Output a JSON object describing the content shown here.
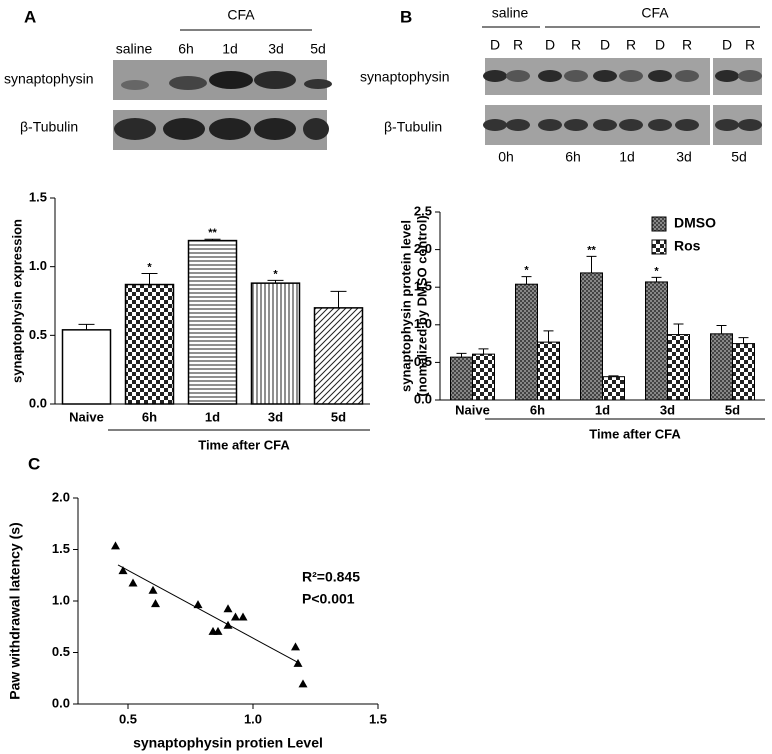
{
  "blot_a": {
    "panel": "A",
    "saline": "saline",
    "cfa": "CFA",
    "times": [
      "6h",
      "1d",
      "3d",
      "5d"
    ],
    "rows": [
      "synaptophysin",
      "β-Tubulin"
    ]
  },
  "blot_b": {
    "panel": "B",
    "saline": "saline",
    "cfa": "CFA",
    "lanes": [
      "D",
      "R",
      "D",
      "R",
      "D",
      "R",
      "D",
      "R",
      "D",
      "R"
    ],
    "times": [
      "0h",
      "6h",
      "1d",
      "3d",
      "5d"
    ],
    "rows": [
      "synaptophysin",
      "β-Tubulin"
    ]
  },
  "panel_c": "C",
  "chart_data": [
    {
      "type": "bar",
      "ylabel": "synaptophysin expression",
      "xlabel": "Time after CFA",
      "categories": [
        "Naive",
        "6h",
        "1d",
        "3d",
        "5d"
      ],
      "values": [
        0.54,
        0.87,
        1.19,
        0.88,
        0.7
      ],
      "errors": [
        0.04,
        0.08,
        0.01,
        0.02,
        0.12
      ],
      "significance": [
        null,
        "*",
        "**",
        "*",
        null
      ],
      "patterns": [
        "none",
        "checker",
        "horizontal",
        "vertical",
        "diagonal"
      ],
      "color": "#000000",
      "ylim": [
        0,
        1.5
      ],
      "yticks": [
        {
          "value": 0,
          "label": "0.0"
        },
        0.5,
        {
          "value": 1,
          "label": "1.0"
        },
        1.5
      ]
    },
    {
      "type": "grouped_bar",
      "ylabel": [
        "synaptophysin protein level",
        "(nomalized by DMSO control)"
      ],
      "xlabel": "Time after CFA",
      "categories": [
        "Naive",
        "6h",
        "1d",
        "3d",
        "5d"
      ],
      "series": [
        {
          "name": "DMSO",
          "color": "#888888",
          "pattern": "dense-checker",
          "values": [
            0.57,
            1.54,
            1.69,
            1.57,
            0.88
          ],
          "errors": [
            0.05,
            0.1,
            0.22,
            0.06,
            0.11
          ],
          "significance": [
            null,
            "*",
            "**",
            "*",
            null
          ]
        },
        {
          "name": "Ros",
          "color": "#000000",
          "pattern": "checker",
          "values": [
            0.61,
            0.77,
            0.31,
            0.87,
            0.75
          ],
          "errors": [
            0.07,
            0.15,
            0.01,
            0.14,
            0.08
          ]
        }
      ],
      "legend": "top-right",
      "ylim": [
        0,
        2.5
      ],
      "yticks": [
        {
          "value": 0,
          "label": "0.0"
        },
        0.5,
        {
          "value": 1,
          "label": "1.0"
        },
        1.5,
        {
          "value": 2,
          "label": "2.0"
        },
        2.5
      ]
    },
    {
      "type": "scatter",
      "xlabel": "synaptophysin protien Level",
      "ylabel": "Paw withdrawal latency (s)",
      "x": [
        0.45,
        0.48,
        0.52,
        0.6,
        0.61,
        0.78,
        0.84,
        0.86,
        0.9,
        0.9,
        0.93,
        0.96,
        1.17,
        1.18,
        1.2
      ],
      "y": [
        1.53,
        1.29,
        1.17,
        1.1,
        0.97,
        0.96,
        0.7,
        0.7,
        0.76,
        0.92,
        0.84,
        0.84,
        0.55,
        0.39,
        0.19
      ],
      "fit": {
        "x": [
          0.46,
          1.19
        ],
        "y": [
          1.35,
          0.39
        ]
      },
      "color": "#000000",
      "annotations": [
        "R²=0.845",
        "P<0.001"
      ],
      "xlim": [
        0.3,
        1.5
      ],
      "xticks": [
        0.5,
        {
          "value": 1,
          "label": "1.0"
        },
        1.5
      ],
      "ylim": [
        0,
        2
      ],
      "yticks": [
        {
          "value": 0,
          "label": "0.0"
        },
        0.5,
        {
          "value": 1,
          "label": "1.0"
        },
        1.5,
        {
          "value": 2,
          "label": "2.0"
        }
      ]
    }
  ]
}
